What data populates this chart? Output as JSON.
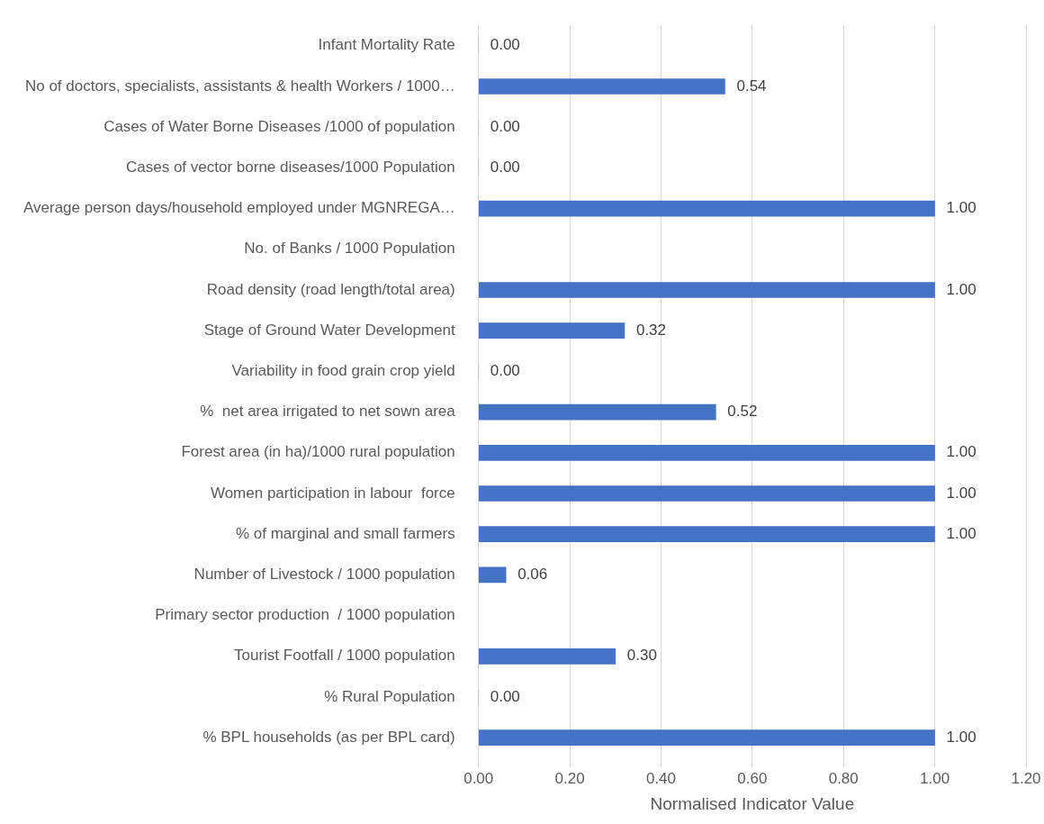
{
  "chart_data": {
    "type": "bar",
    "orientation": "horizontal",
    "xlabel": "Normalised Indicator Value",
    "categories": [
      "Infant Mortality Rate",
      "No of doctors, specialists, assistants & health Workers / 1000…",
      "Cases of Water Borne Diseases /1000 of population",
      "Cases of vector borne diseases/1000 Population",
      "Average person days/household employed under MGNREGA…",
      "No. of Banks / 1000 Population",
      "Road density (road length/total area)",
      "Stage of Ground Water Development",
      "Variability in food grain crop yield",
      "%  net area irrigated to net sown area",
      "Forest area (in ha)/1000 rural population",
      "Women participation in labour  force",
      "% of marginal and small farmers",
      "Number of Livestock / 1000 population",
      "Primary sector production  / 1000 population",
      "Tourist Footfall / 1000 population",
      "% Rural Population",
      "% BPL households (as per BPL card)"
    ],
    "values": [
      0,
      0.54,
      0,
      0,
      1,
      null,
      1,
      0.32,
      0,
      0.52,
      1,
      1,
      1,
      0.06,
      null,
      0.3,
      0,
      1
    ],
    "value_labels": [
      "0.00",
      "0.54",
      "0.00",
      "0.00",
      "1.00",
      null,
      "1.00",
      "0.32",
      "0.00",
      "0.52",
      "1.00",
      "1.00",
      "1.00",
      "0.06",
      null,
      "0.30",
      "0.00",
      "1.00"
    ],
    "color": "#4472c4",
    "xlim": [
      0,
      1.2
    ],
    "xticks": [
      {
        "value": 0,
        "label": "0.00"
      },
      {
        "value": 0.2,
        "label": "0.20"
      },
      {
        "value": 0.4,
        "label": "0.40"
      },
      {
        "value": 0.6,
        "label": "0.60"
      },
      {
        "value": 0.8,
        "label": "0.80"
      },
      {
        "value": 1,
        "label": "1.00"
      },
      {
        "value": 1.2,
        "label": "1.20"
      }
    ],
    "grid": "x",
    "legend": false
  }
}
